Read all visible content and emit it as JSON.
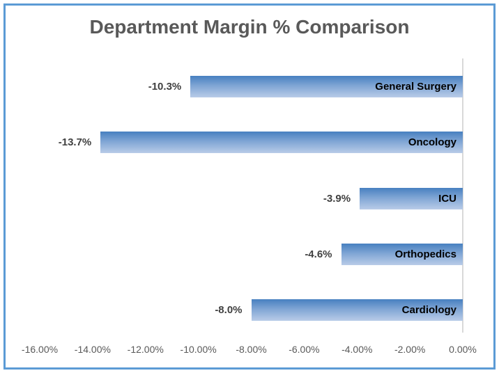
{
  "title": "Department Margin % Comparison",
  "chart_data": {
    "type": "bar",
    "orientation": "horizontal",
    "title": "Department Margin % Comparison",
    "xlabel": "",
    "ylabel": "",
    "categories": [
      "General Surgery",
      "Oncology",
      "ICU",
      "Orthopedics",
      "Cardiology"
    ],
    "values": [
      -10.3,
      -13.7,
      -3.9,
      -4.6,
      -8.0
    ],
    "value_labels": [
      "-10.3%",
      "-13.7%",
      "-3.9%",
      "-4.6%",
      "-8.0%"
    ],
    "xlim": [
      -16,
      0
    ],
    "x_ticks": [
      "-16.00%",
      "-14.00%",
      "-12.00%",
      "-10.00%",
      "-8.00%",
      "-6.00%",
      "-4.00%",
      "-2.00%",
      "0.00%"
    ],
    "grid": false,
    "legend": false,
    "data_labels_position": "outside-end-left",
    "category_labels_position": "inside-end-right"
  },
  "colors": {
    "background": "#ffffff",
    "frame_border": "#5b9bd5",
    "bar_gradient_top": "#4780c0",
    "bar_gradient_mid": "#7fa5d4",
    "bar_gradient_bottom": "#b9cce8",
    "axis_line": "#d9d9d9",
    "title_text": "#595959",
    "tick_text": "#595959",
    "value_label_text": "#404040",
    "category_label_text": "#000000"
  }
}
